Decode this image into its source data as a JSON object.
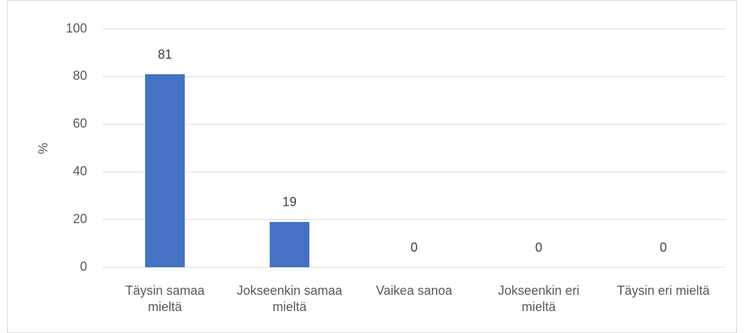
{
  "chart_data": {
    "type": "bar",
    "y_label": "%",
    "categories": [
      "Täysin samaa mieltä",
      "Jokseenkin samaa mieltä",
      "Vaikea sanoa",
      "Jokseenkin eri mieltä",
      "Täysin eri mieltä"
    ],
    "values": [
      81,
      19,
      0,
      0,
      0
    ],
    "color": "#4472c4",
    "ylim": [
      0,
      100
    ],
    "yticks": [
      0,
      20,
      40,
      60,
      80,
      100
    ],
    "grid": true
  }
}
